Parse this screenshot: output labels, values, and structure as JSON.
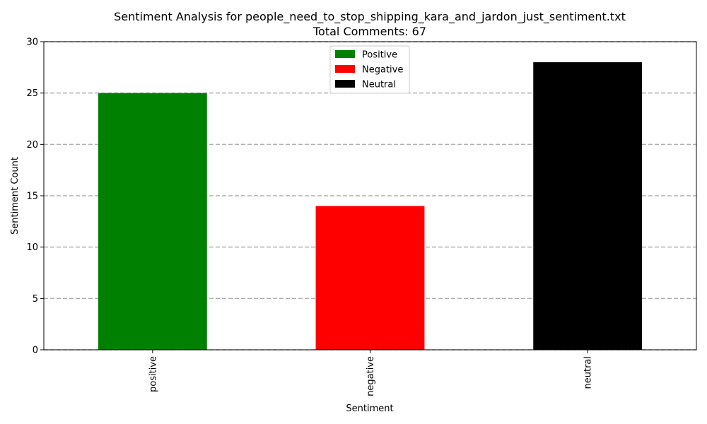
{
  "chart_data": {
    "type": "bar",
    "title": "Sentiment Analysis for people_need_to_stop_shipping_kara_and_jardon_just_sentiment.txt",
    "subtitle": "Total Comments: 67",
    "xlabel": "Sentiment",
    "ylabel": "Sentiment Count",
    "categories": [
      "positive",
      "negative",
      "neutral"
    ],
    "values": [
      25,
      14,
      28
    ],
    "colors": [
      "#008000",
      "#ff0000",
      "#000000"
    ],
    "ylim": [
      0,
      30
    ],
    "yticks": [
      0,
      5,
      10,
      15,
      20,
      25,
      30
    ],
    "grid": true,
    "grid_axis": "y",
    "grid_style": "dashed",
    "grid_color": "#b0b0b0",
    "legend_position": "top-center",
    "legend": [
      {
        "label": "Positive",
        "color": "#008000"
      },
      {
        "label": "Negative",
        "color": "#ff0000"
      },
      {
        "label": "Neutral",
        "color": "#000000"
      }
    ]
  }
}
